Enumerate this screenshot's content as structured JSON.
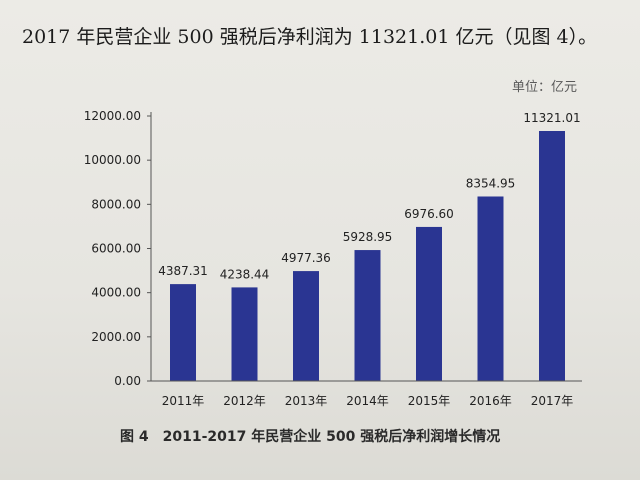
{
  "intro_text": "2017 年民营企业 500 强税后净利润为 11321.01 亿元（见图 4）。",
  "unit_label": "单位：亿元",
  "caption": "图 4　2011-2017 年民营企业 500 强税后净利润增长情况",
  "colors": {
    "bar": "#2a3592",
    "axis": "#555555"
  },
  "chart_data": {
    "type": "bar",
    "title": "",
    "xlabel": "",
    "ylabel": "",
    "unit": "单位：亿元",
    "categories": [
      "2011年",
      "2012年",
      "2013年",
      "2014年",
      "2015年",
      "2016年",
      "2017年"
    ],
    "values": [
      4387.31,
      4238.44,
      4977.36,
      5928.95,
      6976.6,
      8354.95,
      11321.01
    ],
    "data_labels": [
      "4387.31",
      "4238.44",
      "4977.36",
      "5928.95",
      "6976.60",
      "8354.95",
      "11321.01"
    ],
    "ylim": [
      0,
      12000
    ],
    "yticks": [
      0,
      2000,
      4000,
      6000,
      8000,
      10000,
      12000
    ],
    "ytick_labels": [
      "0.00",
      "2000.00",
      "4000.00",
      "6000.00",
      "8000.00",
      "10000.00",
      "12000.00"
    ],
    "grid": false,
    "legend": "none"
  }
}
